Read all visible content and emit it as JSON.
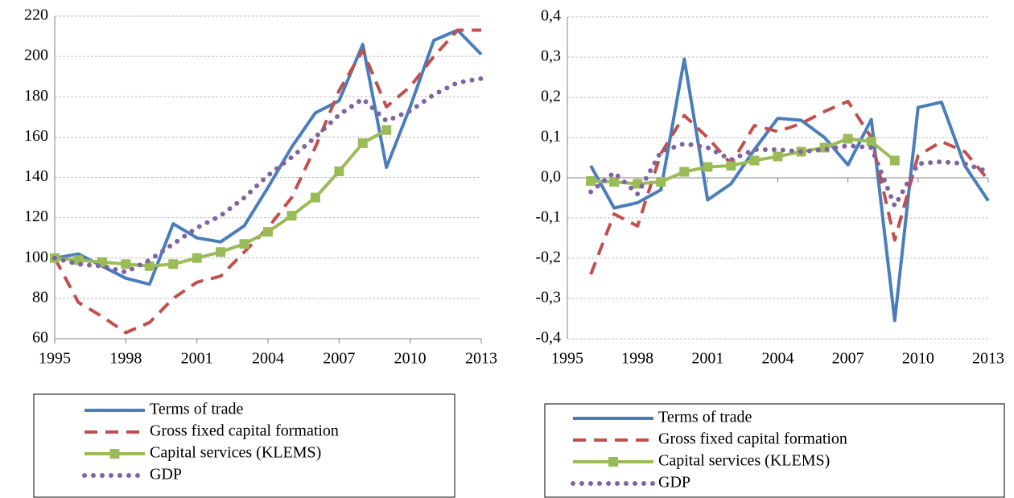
{
  "chart_data": [
    {
      "type": "line",
      "xlim": [
        1995,
        2013
      ],
      "ylim": [
        60,
        220
      ],
      "xticks": [
        1995,
        1998,
        2001,
        2004,
        2007,
        2010,
        2013
      ],
      "yticks": [
        60,
        80,
        100,
        120,
        140,
        160,
        180,
        200,
        220
      ],
      "grid": true,
      "x": [
        1995,
        1996,
        1997,
        1998,
        1999,
        2000,
        2001,
        2002,
        2003,
        2004,
        2005,
        2006,
        2007,
        2008,
        2009,
        2010,
        2011,
        2012,
        2013
      ],
      "series": [
        {
          "name": "Terms of trade",
          "color": "#4a7ebb",
          "values": [
            100,
            102,
            96,
            90,
            87,
            117,
            110,
            108,
            116,
            135,
            155,
            172,
            178,
            206,
            145,
            175,
            208,
            213,
            201
          ]
        },
        {
          "name": "Gross fixed capital formation",
          "color": "#c0504d",
          "values": [
            100,
            78,
            71,
            63,
            68,
            80,
            88,
            91,
            103,
            115,
            130,
            155,
            183,
            203,
            175,
            185,
            200,
            213,
            213
          ]
        },
        {
          "name": "Capital services (KLEMS)",
          "color": "#9bbb59",
          "values": [
            100,
            99,
            98,
            97,
            96,
            97,
            100,
            103,
            107,
            113,
            121,
            130,
            143,
            157,
            163.5,
            null,
            null,
            null,
            null
          ]
        },
        {
          "name": "GDP",
          "color": "#8064a2",
          "values": [
            100,
            97,
            96,
            93,
            99,
            107,
            115,
            121,
            130,
            141,
            150,
            160,
            171,
            179,
            168,
            173,
            181,
            187,
            189
          ]
        }
      ]
    },
    {
      "type": "line",
      "xlim": [
        1995,
        2013
      ],
      "ylim": [
        -0.4,
        0.4
      ],
      "xticks": [
        1995,
        1998,
        2001,
        2004,
        2007,
        2010,
        2013
      ],
      "yticks": [
        {
          "value": -0.4,
          "label": "-0,4"
        },
        {
          "value": -0.3,
          "label": "-0,3"
        },
        {
          "value": -0.2,
          "label": "-0,2"
        },
        {
          "value": -0.1,
          "label": "-0,1"
        },
        {
          "value": 0,
          "label": "0,0"
        },
        {
          "value": 0.1,
          "label": "0,1"
        },
        {
          "value": 0.2,
          "label": "0,2"
        },
        {
          "value": 0.3,
          "label": "0,3"
        },
        {
          "value": 0.4,
          "label": "0,4"
        }
      ],
      "grid": true,
      "x": [
        1996,
        1997,
        1998,
        1999,
        2000,
        2001,
        2002,
        2003,
        2004,
        2005,
        2006,
        2007,
        2008,
        2009,
        2010,
        2011,
        2012,
        2013
      ],
      "series": [
        {
          "name": "Terms of trade",
          "color": "#4a7ebb",
          "values": [
            0.03,
            -0.075,
            -0.062,
            -0.03,
            0.295,
            -0.055,
            -0.015,
            0.07,
            0.148,
            0.143,
            0.1,
            0.032,
            0.145,
            -0.355,
            0.175,
            0.188,
            0.03,
            -0.057
          ]
        },
        {
          "name": "Gross fixed capital formation",
          "color": "#c0504d",
          "values": [
            -0.24,
            -0.09,
            -0.12,
            0.06,
            0.155,
            0.1,
            0.035,
            0.13,
            0.115,
            0.135,
            0.165,
            0.19,
            0.1,
            -0.155,
            0.055,
            0.09,
            0.065,
            -0.005
          ]
        },
        {
          "name": "Capital services (KLEMS)",
          "color": "#9bbb59",
          "values": [
            -0.008,
            -0.01,
            -0.015,
            -0.01,
            0.015,
            0.027,
            0.03,
            0.043,
            0.053,
            0.065,
            0.075,
            0.097,
            0.09,
            0.043,
            null,
            null,
            null,
            null
          ]
        },
        {
          "name": "GDP",
          "color": "#8064a2",
          "values": [
            -0.035,
            0.013,
            -0.04,
            0.065,
            0.085,
            0.075,
            0.045,
            0.07,
            0.07,
            0.065,
            0.07,
            0.08,
            0.075,
            -0.07,
            0.035,
            0.04,
            0.035,
            0.015
          ]
        }
      ]
    }
  ]
}
